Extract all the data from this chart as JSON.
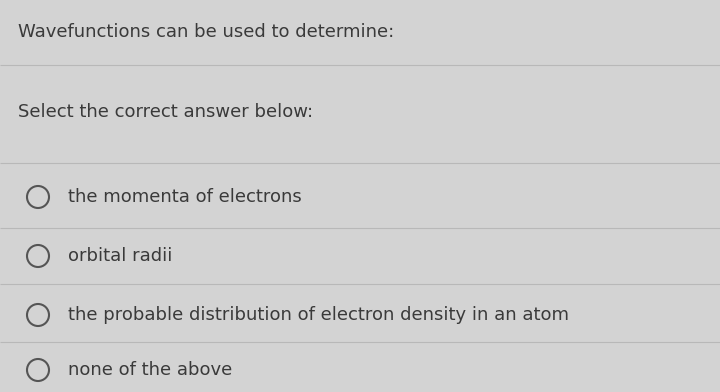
{
  "background_color": "#d3d3d3",
  "title_text": "Wavefunctions can be used to determine:",
  "subtitle_text": "Select the correct answer below:",
  "options": [
    "the momenta of electrons",
    "orbital radii",
    "the probable distribution of electron density in an atom",
    "none of the above"
  ],
  "title_fontsize": 13.0,
  "subtitle_fontsize": 13.0,
  "option_fontsize": 13.0,
  "text_color": "#3a3a3a",
  "line_color": "#b8b8b8",
  "circle_edge_color": "#555555",
  "figsize": [
    7.2,
    3.92
  ],
  "dpi": 100
}
